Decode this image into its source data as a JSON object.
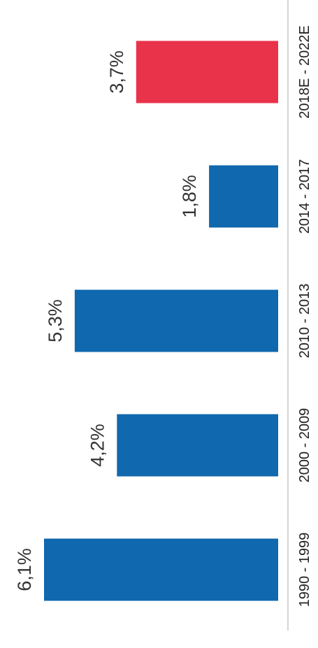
{
  "chart_data": {
    "type": "bar",
    "orientation": "rotated-90",
    "categories": [
      "1990 - 1999",
      "2000 - 2009",
      "2010 - 2013",
      "2014 - 2017",
      "2018E - 2022E"
    ],
    "values": [
      6.1,
      4.2,
      5.3,
      1.8,
      3.7
    ],
    "data_labels": [
      "6,1%",
      "4,2%",
      "5,3%",
      "1,8%",
      "3,7%"
    ],
    "unit": "%",
    "title": "",
    "xlabel": "",
    "ylabel": "",
    "ylim": [
      0,
      6.1
    ],
    "grid": false,
    "legend": "none",
    "colors": {
      "actual": "#1068AE",
      "estimate": "#E8334B",
      "axis": "#C9C9C9",
      "text": "#333333"
    },
    "bar_colors": [
      "actual",
      "actual",
      "actual",
      "actual",
      "estimate"
    ]
  }
}
